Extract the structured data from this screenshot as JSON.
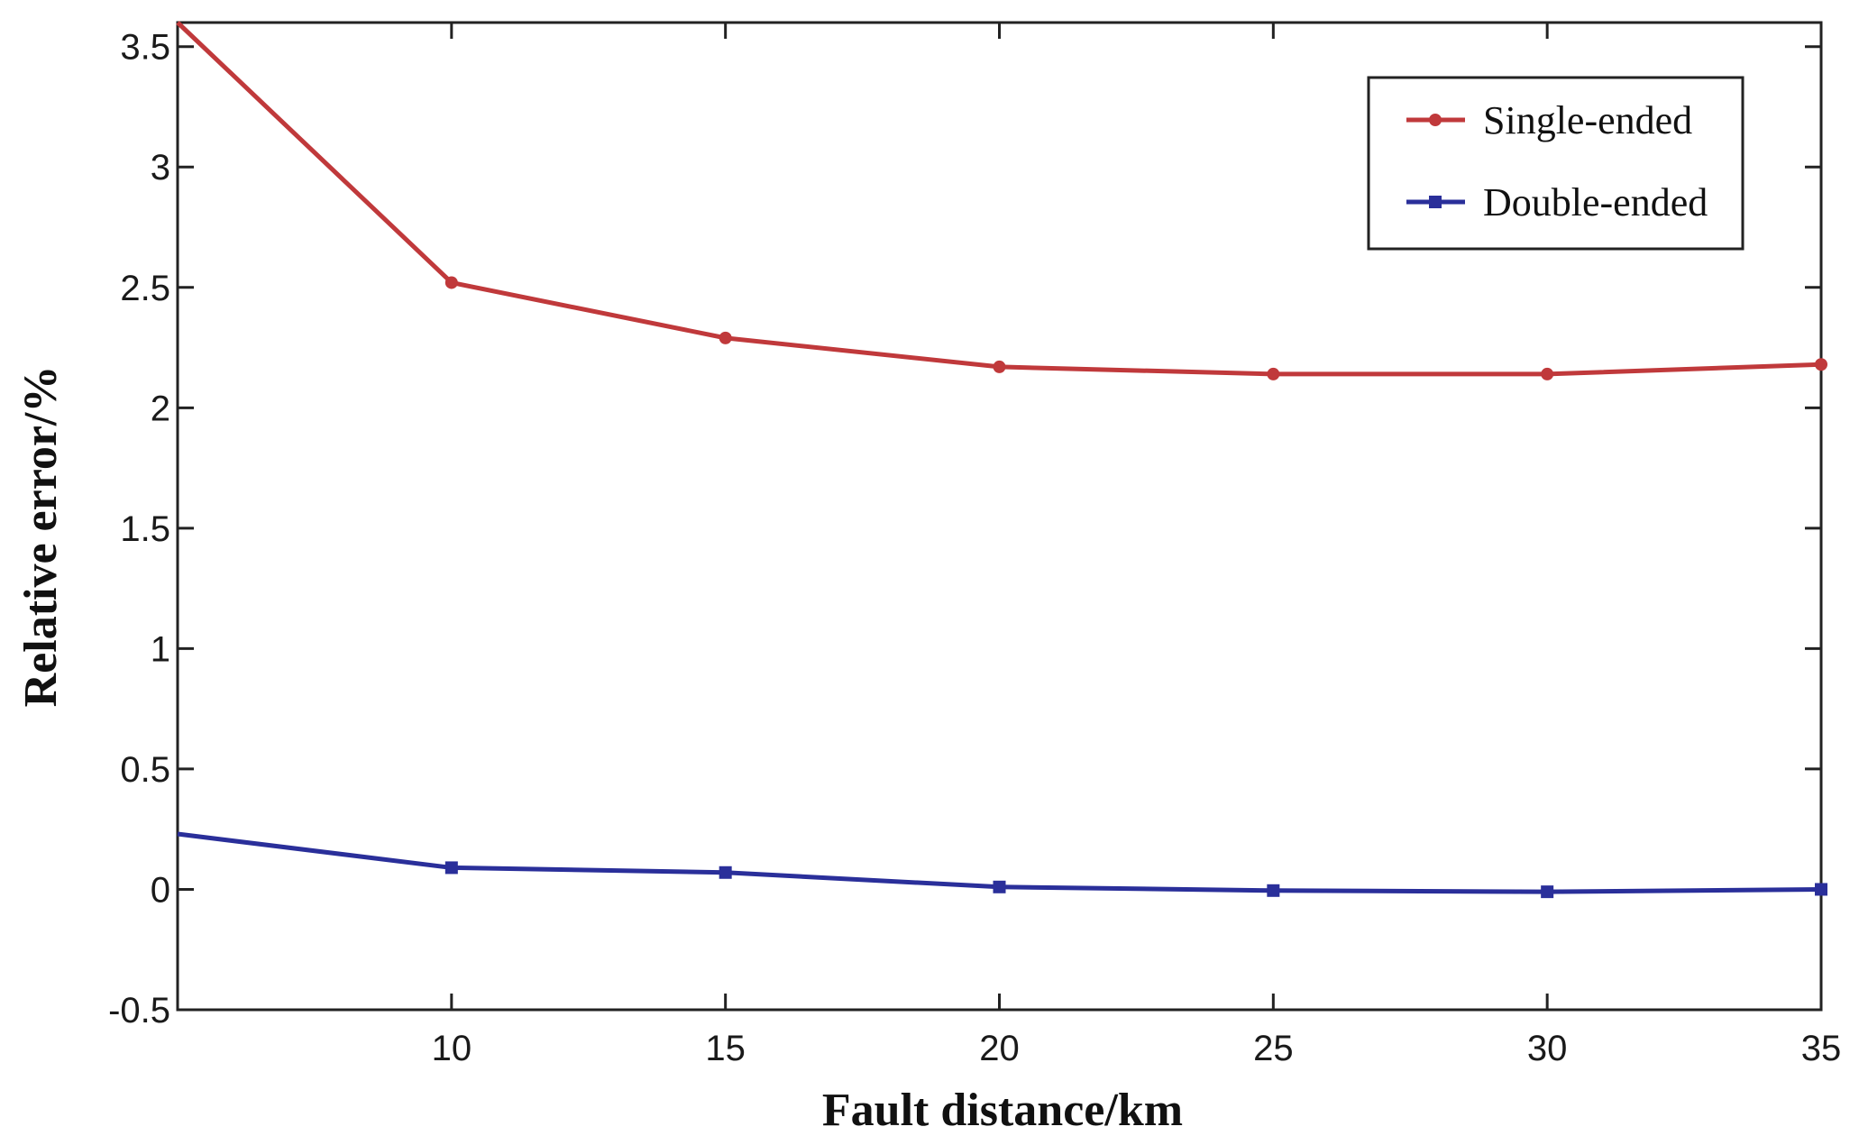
{
  "chart_data": {
    "type": "line",
    "title": "",
    "xlabel": "Fault distance/km",
    "ylabel": "Relative error/%",
    "xlim": [
      5,
      35
    ],
    "ylim": [
      -0.5,
      3.6
    ],
    "xticks": [
      10,
      15,
      20,
      25,
      30,
      35
    ],
    "yticks": [
      -0.5,
      0,
      0.5,
      1,
      1.5,
      2,
      2.5,
      3,
      3.5
    ],
    "grid": false,
    "legend_position": "top-right",
    "x": [
      5,
      10,
      15,
      20,
      25,
      30,
      35
    ],
    "series": [
      {
        "name": "Single-ended",
        "color": "#c0393b",
        "marker": "circle",
        "values": [
          3.6,
          2.52,
          2.29,
          2.17,
          2.14,
          2.14,
          2.18
        ]
      },
      {
        "name": "Double-ended",
        "color": "#2a2f9a",
        "marker": "square",
        "values": [
          0.23,
          0.09,
          0.07,
          0.01,
          -0.005,
          -0.01,
          0.0
        ]
      }
    ]
  }
}
